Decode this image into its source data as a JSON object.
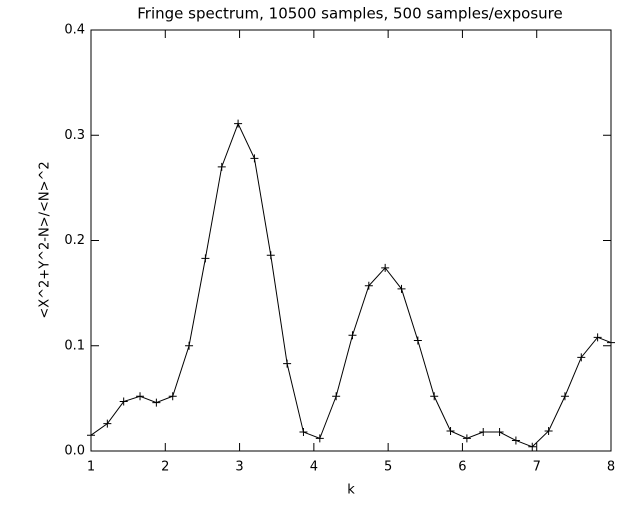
{
  "chart_data": {
    "type": "line",
    "title": "Fringe spectrum, 10500 samples, 500 samples/exposure",
    "x_label": "k",
    "y_label": "<X^2+Y^2-N>/<N>^2",
    "x": [
      1.0,
      1.22,
      1.44,
      1.66,
      1.88,
      2.1,
      2.32,
      2.54,
      2.76,
      2.98,
      3.2,
      3.42,
      3.64,
      3.86,
      4.08,
      4.3,
      4.52,
      4.74,
      4.96,
      5.18,
      5.4,
      5.62,
      5.84,
      6.06,
      6.28,
      6.5,
      6.72,
      6.94,
      7.16,
      7.38,
      7.6,
      7.82,
      8.0
    ],
    "series": [
      {
        "color": "#000000",
        "values": [
          0.015,
          0.026,
          0.047,
          0.052,
          0.046,
          0.052,
          0.1,
          0.183,
          0.27,
          0.311,
          0.278,
          0.186,
          0.083,
          0.018,
          0.012,
          0.052,
          0.11,
          0.157,
          0.174,
          0.154,
          0.105,
          0.052,
          0.019,
          0.012,
          0.018,
          0.018,
          0.01,
          0.004,
          0.019,
          0.052,
          0.089,
          0.108,
          0.103
        ]
      }
    ],
    "xlim": [
      1,
      8
    ],
    "xticks": [
      1,
      2,
      3,
      4,
      5,
      6,
      7,
      8
    ],
    "ylim": [
      0,
      0.4
    ],
    "yticks": [
      {
        "value": 0,
        "label": "0.0"
      },
      0.1,
      0.2,
      0.3,
      0.4
    ],
    "marker": "+",
    "grid": false
  }
}
